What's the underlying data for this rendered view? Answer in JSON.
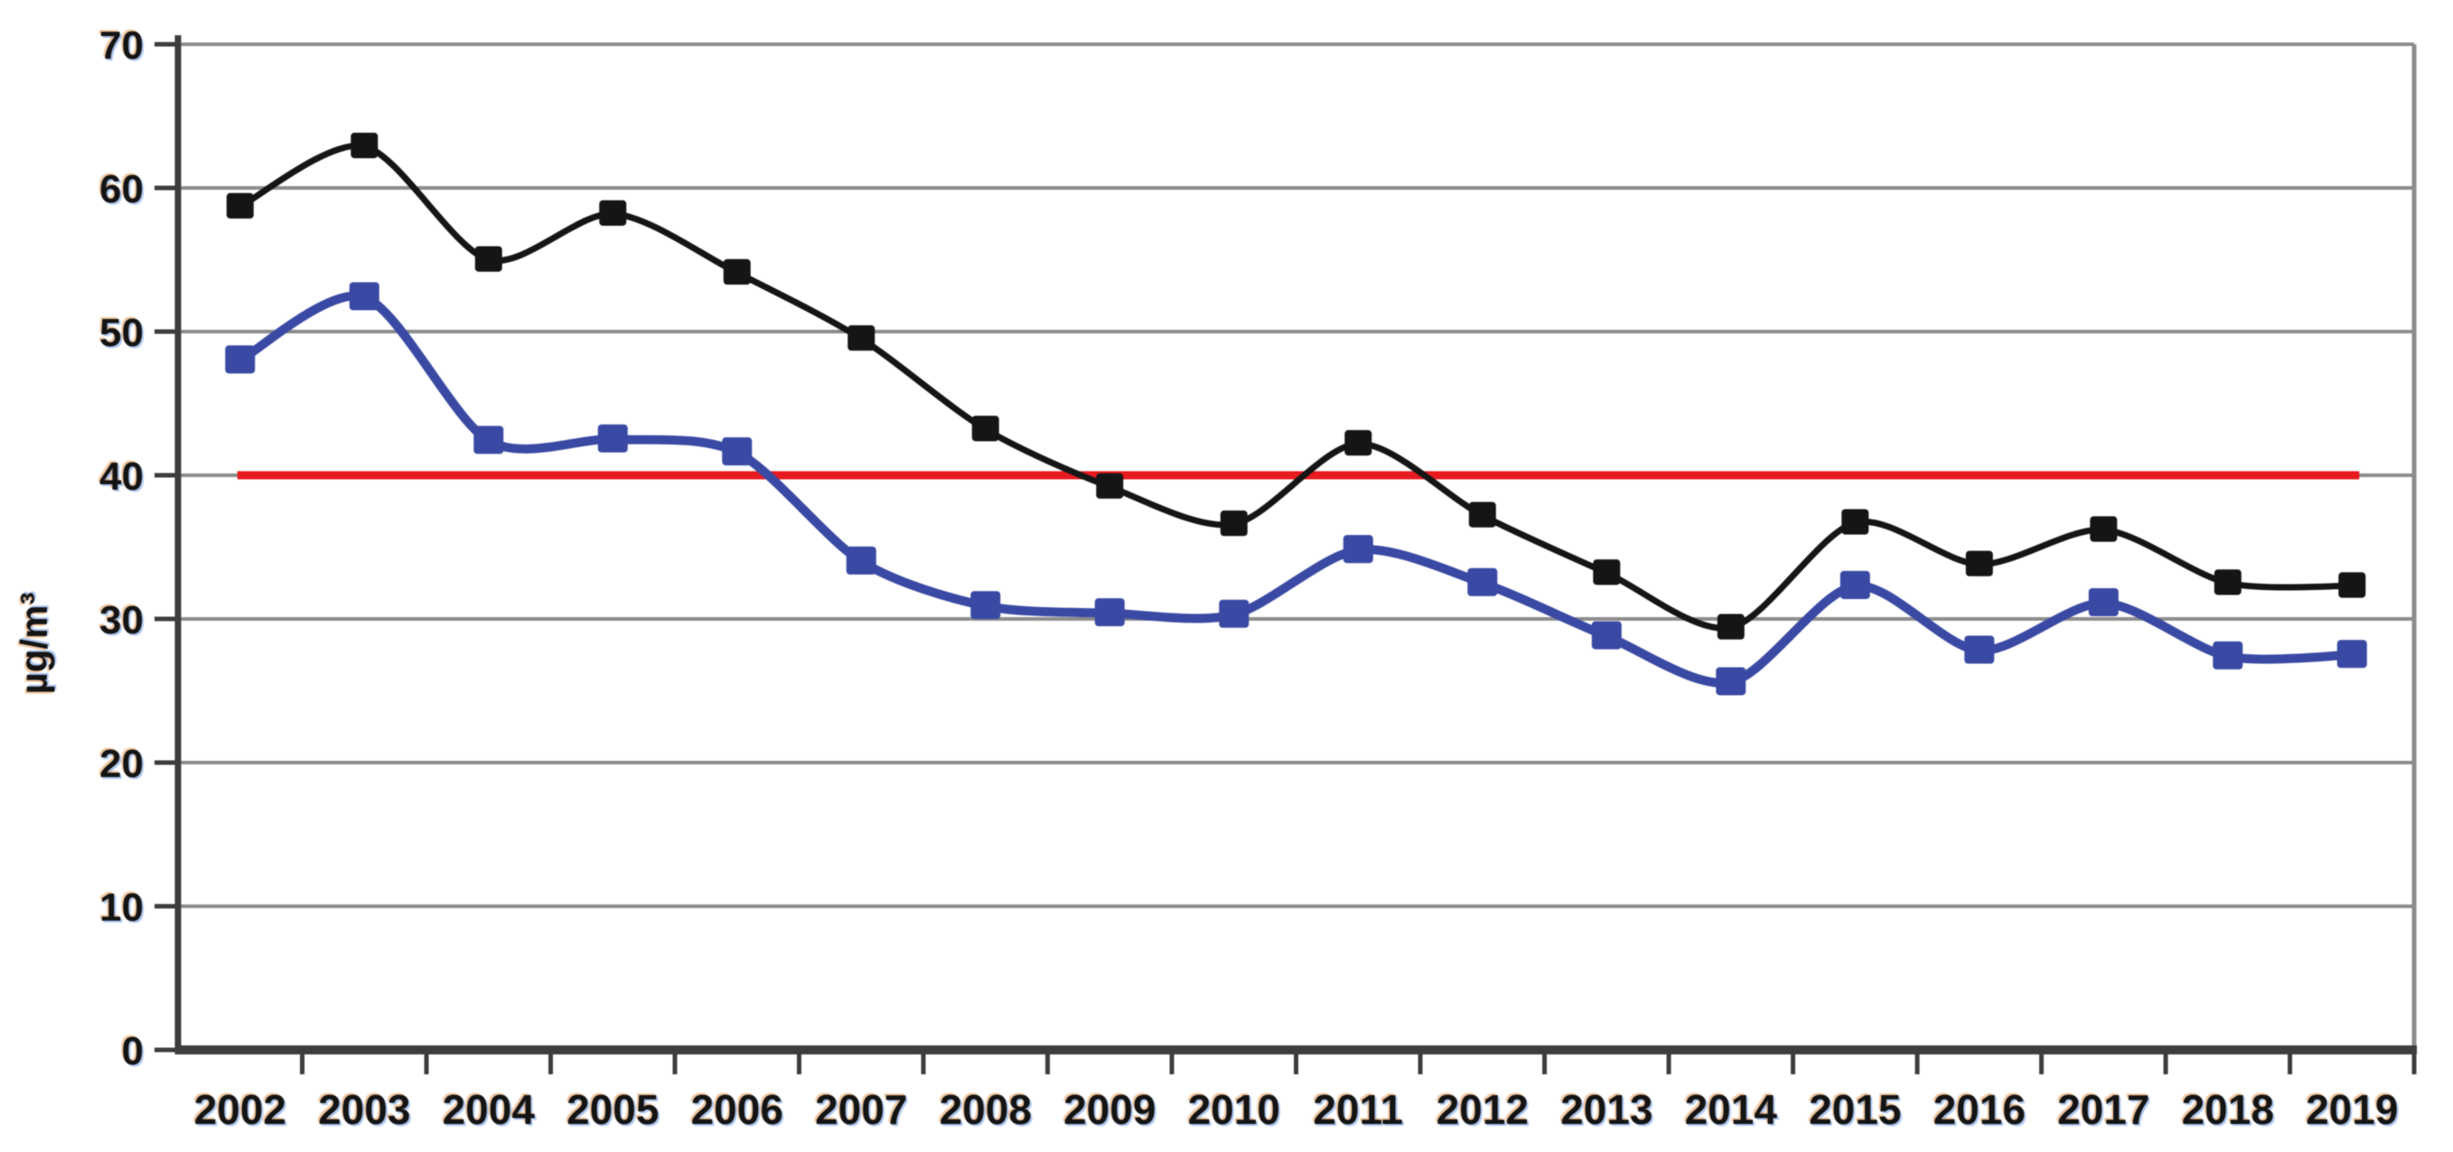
{
  "chart_data": {
    "type": "line",
    "title": "",
    "xlabel": "",
    "ylabel": "µg/m³",
    "ylim": [
      0,
      70
    ],
    "y_ticks": [
      0,
      10,
      20,
      30,
      40,
      50,
      60,
      70
    ],
    "y_tick_labels": [
      "0",
      "10",
      "20",
      "30",
      "40",
      "50",
      "60",
      "70"
    ],
    "grid": "horizontal",
    "legend_position": "none",
    "categories": [
      "2002",
      "2003",
      "2004",
      "2005",
      "2006",
      "2007",
      "2008",
      "2009",
      "2010",
      "2011",
      "2012",
      "2013",
      "2014",
      "2015",
      "2016",
      "2017",
      "2018",
      "2019"
    ],
    "series": [
      {
        "name": "black-series",
        "marker": "square",
        "color": "#151515",
        "values": [
          58.7,
          62.9,
          55.0,
          58.2,
          54.1,
          49.5,
          43.2,
          39.2,
          36.6,
          42.2,
          37.2,
          33.2,
          29.4,
          36.7,
          33.8,
          36.2,
          32.5,
          32.3
        ]
      },
      {
        "name": "blue-series",
        "marker": "square",
        "color": "#3a49a3",
        "values": [
          48.0,
          52.4,
          42.4,
          42.5,
          41.6,
          34.0,
          30.9,
          30.4,
          30.3,
          34.8,
          32.5,
          28.8,
          25.6,
          32.3,
          27.8,
          31.1,
          27.4,
          27.5
        ]
      }
    ],
    "reference_line": {
      "value": 40,
      "color": "#e81b20",
      "span": "first-to-last-category"
    },
    "colors": {
      "gridline": "#8c8c8c",
      "axis": "#3d3d3d",
      "background": "#ffffff",
      "label_text": "#141414"
    }
  }
}
